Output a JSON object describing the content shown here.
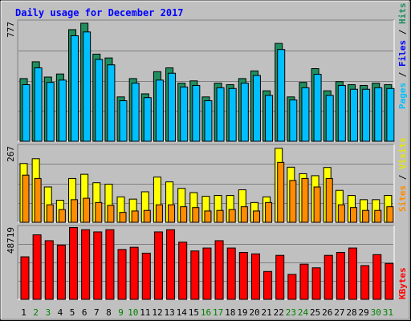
{
  "chart_data": [
    {
      "type": "bar",
      "panel": "hits-files-pages",
      "title": "Daily usage for December 2017",
      "categories": [
        "1",
        "2",
        "3",
        "4",
        "5",
        "6",
        "7",
        "8",
        "9",
        "10",
        "11",
        "12",
        "13",
        "14",
        "15",
        "16",
        "17",
        "18",
        "19",
        "20",
        "21",
        "22",
        "23",
        "24",
        "25",
        "26",
        "27",
        "28",
        "29",
        "30",
        "31"
      ],
      "weekend_categories": [
        "2",
        "3",
        "9",
        "10",
        "16",
        "17",
        "23",
        "24",
        "30",
        "31"
      ],
      "ymax_label": "777",
      "ylim": [
        0,
        777
      ],
      "grid": true,
      "right_label": {
        "pages": "Pages",
        "files": "Files",
        "hits": "Hits",
        "sep": " / "
      },
      "series": [
        {
          "name": "Hits",
          "color": "#1f8f5f",
          "values": [
            410,
            520,
            420,
            440,
            730,
            772,
            570,
            545,
            290,
            410,
            310,
            455,
            480,
            380,
            395,
            290,
            380,
            370,
            410,
            460,
            330,
            640,
            290,
            385,
            475,
            330,
            390,
            370,
            365,
            380,
            370
          ]
        },
        {
          "name": "Files",
          "color": "#00bfff",
          "values": [
            370,
            480,
            385,
            400,
            690,
            715,
            535,
            500,
            265,
            380,
            285,
            400,
            445,
            355,
            365,
            265,
            350,
            345,
            380,
            430,
            300,
            600,
            270,
            350,
            438,
            300,
            365,
            340,
            340,
            350,
            345
          ]
        },
        {
          "name": "Pages",
          "color": "#0000ff",
          "values": [
            0,
            0,
            0,
            0,
            0,
            0,
            0,
            0,
            0,
            0,
            0,
            0,
            0,
            0,
            0,
            0,
            0,
            0,
            0,
            0,
            0,
            0,
            0,
            0,
            0,
            0,
            0,
            0,
            0,
            0,
            0
          ]
        }
      ]
    },
    {
      "type": "bar",
      "panel": "visits-sites",
      "ymax_label": "267",
      "ylim": [
        0,
        267
      ],
      "grid": true,
      "right_label": {
        "sites": "Sites",
        "visits": "Visits",
        "sep": " / "
      },
      "series": [
        {
          "name": "Visits",
          "color": "#ffff00",
          "values": [
            208,
            225,
            125,
            78,
            155,
            170,
            140,
            135,
            90,
            82,
            108,
            160,
            143,
            120,
            105,
            92,
            95,
            95,
            115,
            70,
            90,
            262,
            195,
            172,
            165,
            194,
            113,
            95,
            80,
            80,
            95
          ]
        },
        {
          "name": "Sites",
          "color": "#ff8c00",
          "values": [
            167,
            155,
            62,
            45,
            80,
            85,
            70,
            60,
            35,
            40,
            42,
            62,
            62,
            55,
            52,
            40,
            42,
            45,
            55,
            40,
            70,
            212,
            148,
            155,
            125,
            155,
            62,
            52,
            42,
            42,
            55
          ]
        }
      ]
    },
    {
      "type": "bar",
      "panel": "kbytes",
      "ymax_label": "48719",
      "ylim": [
        0,
        48719
      ],
      "grid": true,
      "right_label": {
        "kbytes": "KBytes"
      },
      "series": [
        {
          "name": "KBytes",
          "color": "#ff0000",
          "values": [
            29000,
            44000,
            40000,
            37000,
            49000,
            47500,
            46000,
            47500,
            34000,
            35500,
            31500,
            46000,
            47500,
            39000,
            33000,
            35000,
            40000,
            35000,
            32000,
            31000,
            19000,
            30000,
            17000,
            24000,
            21500,
            30000,
            32000,
            35000,
            23000,
            30500,
            24500
          ]
        }
      ]
    }
  ]
}
